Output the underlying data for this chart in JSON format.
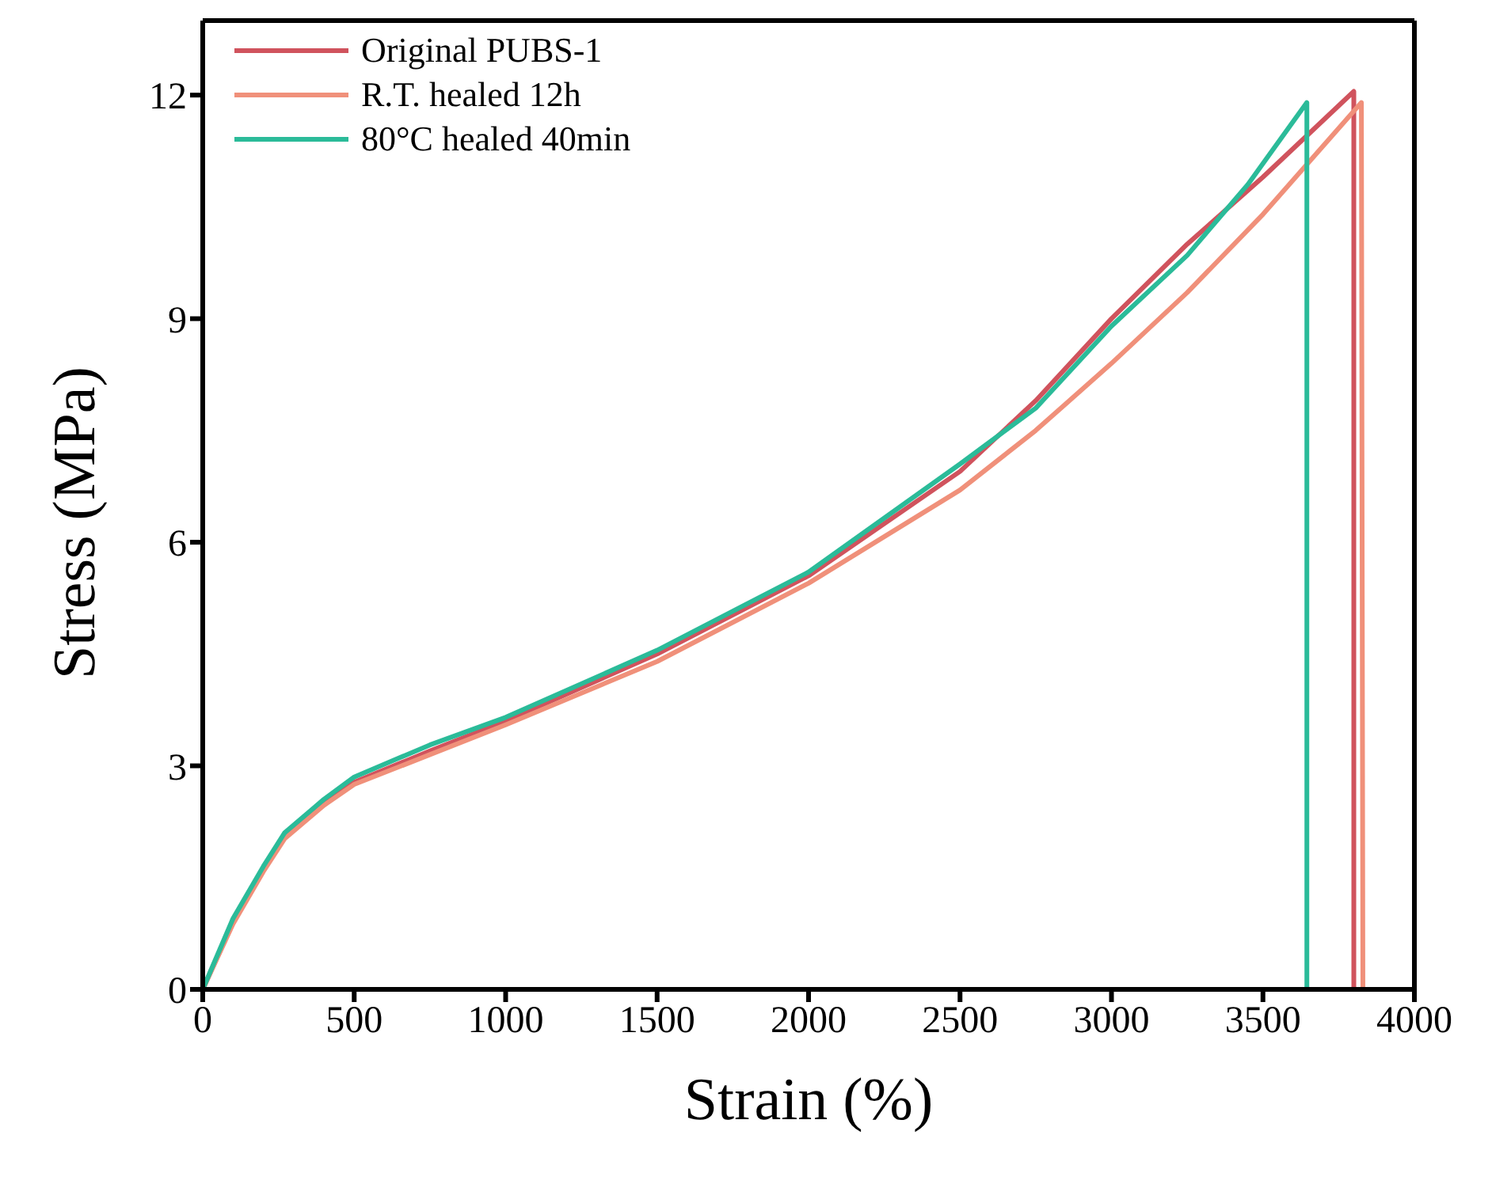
{
  "chart_data": {
    "type": "line",
    "xlabel": "Strain (%)",
    "ylabel": "Stress (MPa)",
    "xlim": [
      0,
      4000
    ],
    "ylim": [
      0,
      13
    ],
    "xticks": [
      0,
      500,
      1000,
      1500,
      2000,
      2500,
      3000,
      3500,
      4000
    ],
    "yticks": [
      0,
      3,
      6,
      9,
      12
    ],
    "legend": "top left",
    "marker": "none",
    "line_style": "solid",
    "series": [
      {
        "name": "Original PUBS-1",
        "color": "#d0535d",
        "x": [
          0,
          100,
          200,
          270,
          400,
          500,
          750,
          1000,
          1500,
          2000,
          2500,
          2750,
          3000,
          3250,
          3500,
          3800,
          3800
        ],
        "values": [
          0,
          0.9,
          1.6,
          2.05,
          2.5,
          2.78,
          3.2,
          3.6,
          4.5,
          5.55,
          6.95,
          7.9,
          9.0,
          10.0,
          10.9,
          12.05,
          0
        ]
      },
      {
        "name": "R.T. healed 12h",
        "color": "#f0907a",
        "x": [
          0,
          100,
          200,
          270,
          400,
          500,
          750,
          1000,
          1500,
          2000,
          2500,
          2750,
          3000,
          3250,
          3500,
          3825,
          3830
        ],
        "values": [
          0,
          0.88,
          1.58,
          2.02,
          2.47,
          2.75,
          3.15,
          3.55,
          4.4,
          5.45,
          6.7,
          7.5,
          8.4,
          9.35,
          10.4,
          11.9,
          0
        ]
      },
      {
        "name": "80°C healed 40min",
        "color": "#2bbb99",
        "x": [
          0,
          100,
          200,
          270,
          400,
          500,
          750,
          1000,
          1500,
          2000,
          2500,
          2750,
          3000,
          3250,
          3450,
          3645,
          3645
        ],
        "values": [
          0,
          0.95,
          1.65,
          2.1,
          2.55,
          2.85,
          3.28,
          3.65,
          4.55,
          5.6,
          7.05,
          7.8,
          8.9,
          9.85,
          10.8,
          11.9,
          0
        ]
      }
    ]
  }
}
